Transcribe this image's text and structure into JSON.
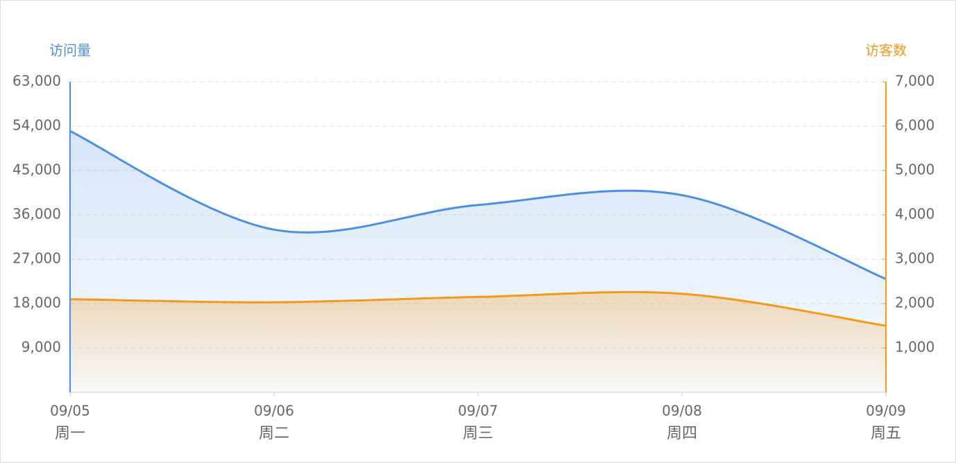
{
  "chart_data": {
    "type": "line",
    "categories": [
      "09/05",
      "09/06",
      "09/07",
      "09/08",
      "09/09"
    ],
    "weekdays": [
      "周一",
      "周二",
      "周三",
      "周四",
      "周五"
    ],
    "y_label": "访问量",
    "y2_label": "访客数",
    "series": [
      {
        "name": "访问量",
        "color": "#4a8fe3",
        "values": [
          53000,
          33000,
          38000,
          40000,
          23000
        ]
      },
      {
        "name": "访客数",
        "color": "#f39a1e",
        "axis": "y2",
        "values": [
          2100,
          2030,
          2150,
          2220,
          1500
        ]
      }
    ],
    "ylim": [
      0,
      63000
    ],
    "yticks": [
      {
        "value": 9000,
        "label": "9,000"
      },
      {
        "value": 18000,
        "label": "18,000"
      },
      {
        "value": 27000,
        "label": "27,000"
      },
      {
        "value": 36000,
        "label": "36,000"
      },
      {
        "value": 45000,
        "label": "45,000"
      },
      {
        "value": 54000,
        "label": "54,000"
      },
      {
        "value": 63000,
        "label": "63,000"
      }
    ],
    "y2lim": [
      0,
      7000
    ],
    "y2ticks": [
      {
        "value": 1000,
        "label": "1,000"
      },
      {
        "value": 2000,
        "label": "2,000"
      },
      {
        "value": 3000,
        "label": "3,000"
      },
      {
        "value": 4000,
        "label": "4,000"
      },
      {
        "value": 5000,
        "label": "5,000"
      },
      {
        "value": 6000,
        "label": "6,000"
      },
      {
        "value": 7000,
        "label": "7,000"
      }
    ],
    "grid": true,
    "smooth": true
  }
}
